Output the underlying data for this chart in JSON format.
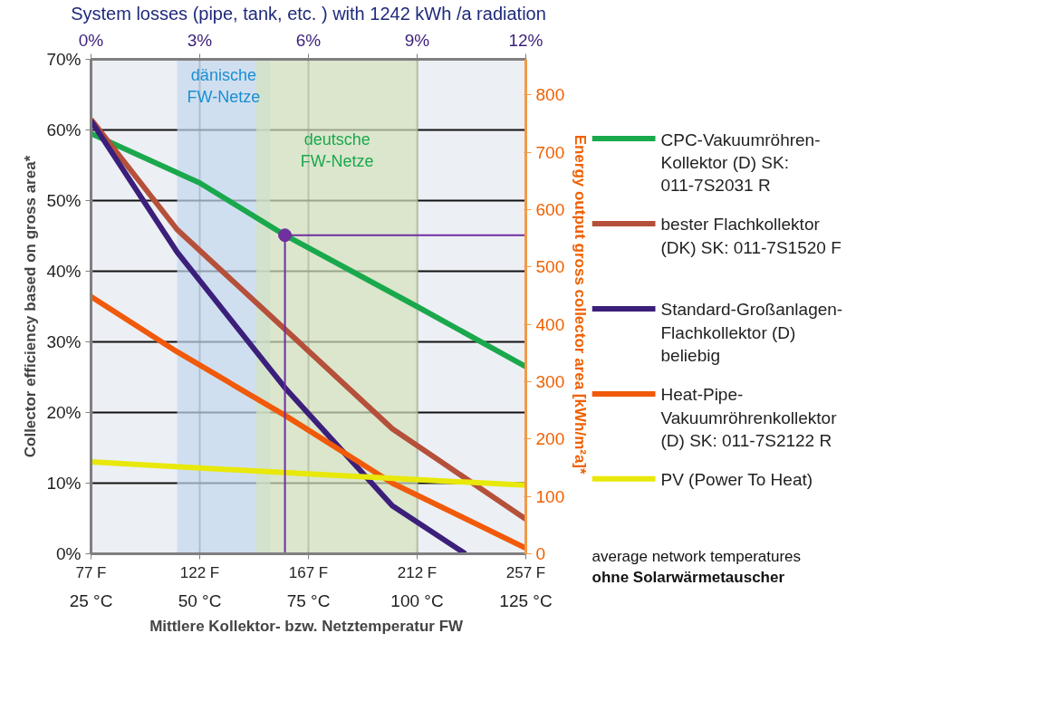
{
  "chart_data": {
    "type": "line",
    "x2label": "System losses (pipe, tank, etc. ) with 1242 kWh /a radiation",
    "xlabel": "Mittlere Kollektor- bzw.  Netztemperatur FW",
    "ylabel": "Collector efficiency based on gross area*",
    "y2label": "Energy output  gross collector area [kWh/m²a]*",
    "xlim": [
      25,
      125
    ],
    "xticks": [
      {
        "value": 25,
        "label": "25 °C"
      },
      {
        "value": 50,
        "label": "50 °C"
      },
      {
        "value": 75,
        "label": "75 °C"
      },
      {
        "value": 100,
        "label": "100 °C"
      },
      {
        "value": 125,
        "label": "125 °C"
      }
    ],
    "x2lim": [
      0,
      12
    ],
    "x2ticks": [
      {
        "value": 0,
        "label": "0%"
      },
      {
        "value": 3,
        "label": "3%"
      },
      {
        "value": 6,
        "label": "6%"
      },
      {
        "value": 9,
        "label": "9%"
      },
      {
        "value": 12,
        "label": "12%"
      }
    ],
    "ylim": [
      0,
      70
    ],
    "yticks": [
      {
        "value": 0,
        "label": "0%"
      },
      {
        "value": 10,
        "label": "10%"
      },
      {
        "value": 20,
        "label": "20%"
      },
      {
        "value": 30,
        "label": "30%"
      },
      {
        "value": 40,
        "label": "40%"
      },
      {
        "value": 50,
        "label": "50%"
      },
      {
        "value": 60,
        "label": "60%"
      },
      {
        "value": 70,
        "label": "70%"
      }
    ],
    "y2lim": [
      0,
      862
    ],
    "y2ticks": [
      0,
      100,
      200,
      300,
      400,
      500,
      600,
      700,
      800
    ],
    "grid": true,
    "legend": "right",
    "line_style": "solid",
    "bands": [
      {
        "axis": "x",
        "from": 44.8,
        "to": 66.2,
        "label": "dänische FW-Netze",
        "color": "#c5d9ee"
      },
      {
        "axis": "x",
        "from": 63.0,
        "to": 100.2,
        "label": "deutsche FW-Netze",
        "color": "#d4e2bc"
      }
    ],
    "series": [
      {
        "name": "CPC-Vakuumröhren-Kollektor (D) SK: 011-7S2031 R",
        "color": "#1aa84c",
        "x": [
          25,
          50,
          69.6,
          100,
          125
        ],
        "values": [
          59.5,
          52.5,
          45.1,
          35.0,
          26.5
        ]
      },
      {
        "name": "bester Flachkollektor (DK) SK: 011-7S1520 F",
        "color": "#b5503a",
        "x": [
          25,
          44.8,
          69.6,
          94.3,
          125
        ],
        "values": [
          61.5,
          45.9,
          31.8,
          17.7,
          4.9
        ]
      },
      {
        "name": "Standard-Großanlagen-Flachkollektor (D) beliebig",
        "color": "#3b1f7a",
        "x": [
          25,
          44.8,
          69.6,
          94.3,
          111.1
        ],
        "values": [
          61.3,
          42.7,
          23.5,
          6.8,
          0
        ]
      },
      {
        "name": "Heat-Pipe-Vakuumröhrenkollektor (D) SK: 011-7S2122 R",
        "color": "#f05a0a",
        "x": [
          25,
          44.8,
          69.6,
          94.3,
          125
        ],
        "values": [
          36.4,
          28.6,
          19.6,
          10.0,
          0.8
        ]
      },
      {
        "name": "PV (Power To Heat)",
        "color": "#e8e80a",
        "x": [
          25,
          75,
          125
        ],
        "values": [
          13.0,
          11.3,
          9.7
        ]
      },
      {
        "type": "line",
        "color": "#7030a0",
        "x": [
          69.6,
          69.6,
          125
        ],
        "values": [
          0,
          45.1,
          45.1
        ]
      },
      {
        "type": "scatter",
        "marker": "circle",
        "color": "#7030a0",
        "x": [
          69.6
        ],
        "values": [
          45.1
        ]
      }
    ],
    "annotations": [
      "average network temperatures",
      "ohne Solarwärmetauscher",
      "77 F",
      "122 F",
      "167 F",
      "212 F",
      "257 F"
    ]
  }
}
